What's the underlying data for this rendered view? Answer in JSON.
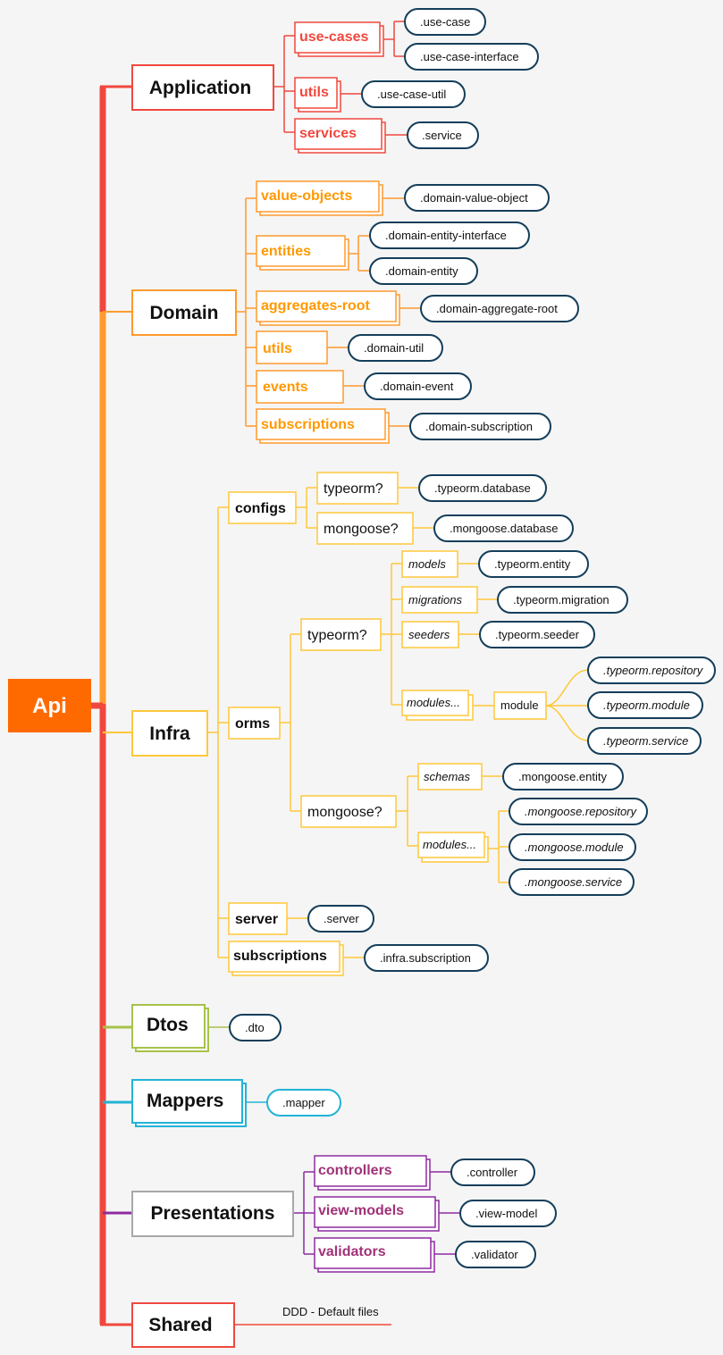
{
  "colors": {
    "red": "#f0483e",
    "orange": "#ff9a2e",
    "yellow": "#ffc83a",
    "green": "#a7c24a",
    "cyan": "#22b3d6",
    "grey": "#a8a8a8",
    "purple": "#8e2ba1",
    "navy": "#143e5a",
    "root": "#ff6a00",
    "textRed": "#f0483e",
    "textOrange": "#ff9900",
    "textPurple": "#a03277"
  },
  "root": {
    "label": "Api"
  },
  "application": {
    "label": "Application",
    "use_cases": {
      "label": "use-cases",
      "children": [
        ".use-case",
        ".use-case-interface"
      ]
    },
    "utils": {
      "label": "utils",
      "children": [
        ".use-case-util"
      ]
    },
    "services": {
      "label": "services",
      "children": [
        ".service"
      ]
    }
  },
  "domain": {
    "label": "Domain",
    "value_objects": {
      "label": "value-objects",
      "children": [
        ".domain-value-object"
      ]
    },
    "entities": {
      "label": "entities",
      "children": [
        ".domain-entity-interface",
        ".domain-entity"
      ]
    },
    "aggregates_root": {
      "label": "aggregates-root",
      "children": [
        ".domain-aggregate-root"
      ]
    },
    "utils": {
      "label": "utils",
      "children": [
        ".domain-util"
      ]
    },
    "events": {
      "label": "events",
      "children": [
        ".domain-event"
      ]
    },
    "subscriptions": {
      "label": "subscriptions",
      "children": [
        ".domain-subscription"
      ]
    }
  },
  "infra": {
    "label": "Infra",
    "configs": {
      "label": "configs",
      "typeorm": {
        "label": "typeorm?",
        "children": [
          ".typeorm.database"
        ]
      },
      "mongoose": {
        "label": "mongoose?",
        "children": [
          ".mongoose.database"
        ]
      }
    },
    "orms": {
      "label": "orms",
      "typeorm": {
        "label": "typeorm?",
        "models": {
          "label": "models",
          "children": [
            ".typeorm.entity"
          ]
        },
        "migrations": {
          "label": "migrations",
          "children": [
            ".typeorm.migration"
          ]
        },
        "seeders": {
          "label": "seeders",
          "children": [
            ".typeorm.seeder"
          ]
        },
        "modules": {
          "label": "modules...",
          "module": {
            "label": "module",
            "children": [
              ".typeorm.repository",
              ".typeorm.module",
              ".typeorm.service"
            ]
          }
        }
      },
      "mongoose": {
        "label": "mongoose?",
        "schemas": {
          "label": "schemas",
          "children": [
            ".mongoose.entity"
          ]
        },
        "modules": {
          "label": "modules...",
          "children": [
            ".mongoose.repository",
            ".mongoose.module",
            ".mongoose.service"
          ]
        }
      }
    },
    "server": {
      "label": "server",
      "children": [
        ".server"
      ]
    },
    "subscriptions": {
      "label": "subscriptions",
      "children": [
        ".infra.subscription"
      ]
    }
  },
  "dtos": {
    "label": "Dtos",
    "children": [
      ".dto"
    ]
  },
  "mappers": {
    "label": "Mappers",
    "children": [
      ".mapper"
    ]
  },
  "presentations": {
    "label": "Presentations",
    "controllers": {
      "label": "controllers",
      "children": [
        ".controller"
      ]
    },
    "view_models": {
      "label": "view-models",
      "children": [
        ".view-model"
      ]
    },
    "validators": {
      "label": "validators",
      "children": [
        ".validator"
      ]
    }
  },
  "shared": {
    "label": "Shared",
    "note": "DDD - Default files"
  }
}
